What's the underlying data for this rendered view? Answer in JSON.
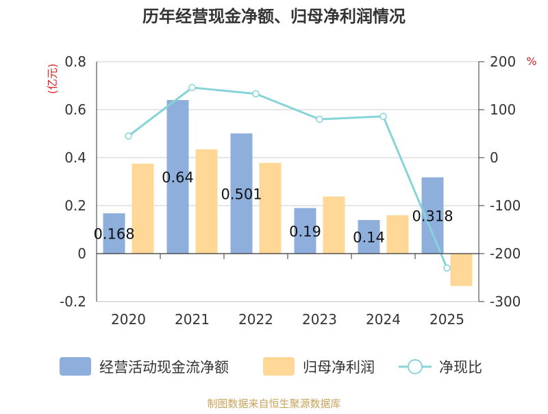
{
  "chart_data": {
    "type": "bar",
    "title": "历年经营现金净额、归母净利润情况",
    "categories": [
      "2020",
      "2021",
      "2022",
      "2023",
      "2024",
      "2025"
    ],
    "series": [
      {
        "name": "经营活动现金流净额",
        "type": "bar",
        "axis": "left",
        "color": "#8eafdc",
        "values": [
          0.168,
          0.64,
          0.501,
          0.19,
          0.14,
          0.318
        ],
        "labels": [
          "0.168",
          "0.64",
          "0.501",
          "0.19",
          "0.14",
          "0.318"
        ]
      },
      {
        "name": "归母净利润",
        "type": "bar",
        "axis": "left",
        "color": "#ffd796",
        "values": [
          0.375,
          0.435,
          0.378,
          0.238,
          0.16,
          -0.135
        ]
      },
      {
        "name": "净现比",
        "type": "line",
        "axis": "right",
        "color": "#86d4d8",
        "values": [
          45,
          146,
          133,
          80,
          86,
          -230
        ]
      }
    ],
    "y_left": {
      "label": "(亿元)",
      "ticks": [
        "0.8",
        "0.6",
        "0.4",
        "0.2",
        "0",
        "-0.2"
      ],
      "ylim": [
        -0.2,
        0.8
      ]
    },
    "y_right": {
      "label": "%",
      "ticks": [
        "200",
        "100",
        "0",
        "-100",
        "-200",
        "-300"
      ],
      "ylim": [
        -300,
        200
      ]
    },
    "grid": true,
    "legend_position": "bottom"
  },
  "footer": {
    "source": "制图数据来自恒生聚源数据库"
  }
}
